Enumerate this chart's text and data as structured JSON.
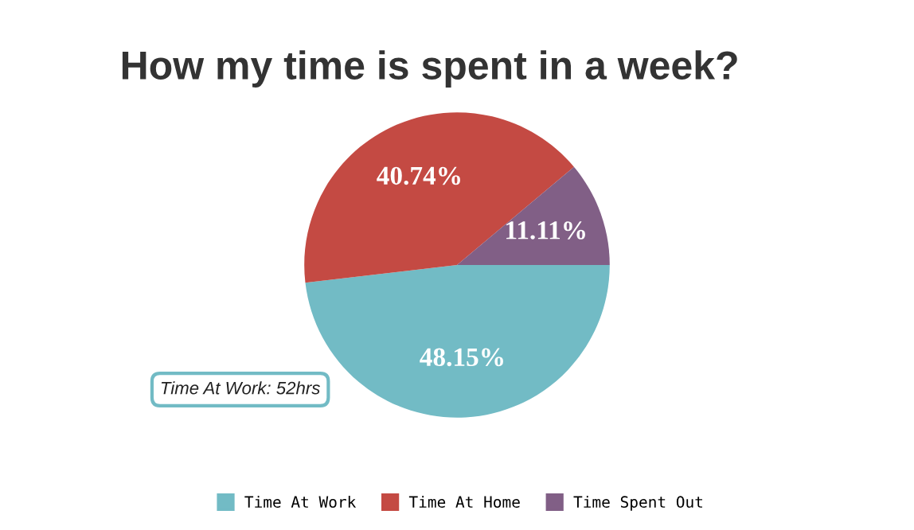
{
  "chart_data": {
    "type": "pie",
    "title": "How my time is spent in a week?",
    "categories": [
      "Time At Work",
      "Time At Home",
      "Time Spent Out"
    ],
    "values": [
      48.15,
      40.74,
      11.11
    ],
    "colors": [
      "#72bbc5",
      "#c44a43",
      "#815f86"
    ],
    "value_labels": [
      "48.15%",
      "40.74%",
      "11.11%"
    ],
    "annotations": [
      "Time At Work: 52hrs"
    ],
    "legend": "bottom"
  }
}
